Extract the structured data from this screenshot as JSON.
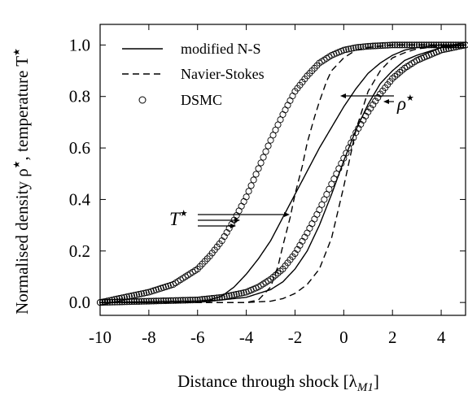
{
  "chart_data": {
    "type": "line",
    "xlabel": "Distance through shock [λ",
    "xlabel_sub": "M1",
    "xlabel_close": "]",
    "ylabel": "Normalised density ρ",
    "ylabel_mid": ", temperature T",
    "star": "★",
    "xlim": [
      -10,
      5
    ],
    "ylim": [
      -0.05,
      1.08
    ],
    "xticks": [
      -10,
      -8,
      -6,
      -4,
      -2,
      0,
      2,
      4
    ],
    "xtick_labels": [
      "-10",
      "-8",
      "-6",
      "-4",
      "-2",
      "0",
      "2",
      "4"
    ],
    "yticks": [
      0.0,
      0.2,
      0.4,
      0.6,
      0.8,
      1.0
    ],
    "ytick_labels": [
      "0.0",
      "0.2",
      "0.4",
      "0.6",
      "0.8",
      "1.0"
    ],
    "legend_position": "top-left",
    "legend": [
      {
        "label": "modified N-S",
        "style": "solid"
      },
      {
        "label": "Navier-Stokes",
        "style": "dashed"
      },
      {
        "label": "DSMC",
        "style": "circle"
      }
    ],
    "annotations": {
      "temperature": {
        "symbol": "T",
        "star": "★"
      },
      "density": {
        "symbol": "ρ",
        "star": "★"
      }
    },
    "series": [
      {
        "variable": "T",
        "style": "solid",
        "x": [
          -10,
          -8,
          -6,
          -5.5,
          -5,
          -4.5,
          -4,
          -3.5,
          -3,
          -2.5,
          -2,
          -1.5,
          -1,
          -0.5,
          0,
          0.5,
          1,
          1.5,
          2,
          2.5,
          3,
          4,
          5
        ],
        "y": [
          0.0,
          0.0,
          0.005,
          0.01,
          0.025,
          0.06,
          0.11,
          0.17,
          0.24,
          0.33,
          0.42,
          0.51,
          0.6,
          0.68,
          0.76,
          0.83,
          0.89,
          0.93,
          0.96,
          0.98,
          0.99,
          1.0,
          1.0
        ]
      },
      {
        "variable": "T",
        "style": "dashed",
        "x": [
          -10,
          -6,
          -4,
          -3.5,
          -3,
          -2.7,
          -2.5,
          -2.2,
          -2,
          -1.7,
          -1.5,
          -1.2,
          -1,
          -0.7,
          -0.5,
          0,
          0.5,
          1,
          2,
          5
        ],
        "y": [
          0.0,
          0.0,
          0.0,
          0.01,
          0.06,
          0.14,
          0.22,
          0.33,
          0.42,
          0.53,
          0.62,
          0.72,
          0.78,
          0.86,
          0.9,
          0.95,
          0.98,
          0.99,
          1.0,
          1.0
        ]
      },
      {
        "variable": "ρ",
        "style": "solid",
        "x": [
          -10,
          -6,
          -5,
          -4,
          -3,
          -2.5,
          -2,
          -1.5,
          -1,
          -0.5,
          0,
          0.5,
          1,
          1.5,
          2,
          2.5,
          3,
          4,
          5
        ],
        "y": [
          0.0,
          0.005,
          0.01,
          0.02,
          0.05,
          0.08,
          0.13,
          0.2,
          0.3,
          0.42,
          0.55,
          0.67,
          0.77,
          0.85,
          0.9,
          0.94,
          0.96,
          0.99,
          1.0
        ]
      },
      {
        "variable": "ρ",
        "style": "dashed",
        "x": [
          -10,
          -4,
          -3,
          -2.5,
          -2,
          -1.5,
          -1,
          -0.5,
          0,
          0.5,
          1,
          1.5,
          2,
          2.5,
          3,
          4,
          5
        ],
        "y": [
          0.0,
          0.0,
          0.005,
          0.015,
          0.035,
          0.07,
          0.13,
          0.25,
          0.45,
          0.67,
          0.82,
          0.9,
          0.95,
          0.97,
          0.985,
          0.995,
          1.0
        ]
      },
      {
        "variable": "T",
        "style": "circle",
        "x": [
          -10,
          -9,
          -8,
          -7,
          -6,
          -5.5,
          -5,
          -4.5,
          -4,
          -3.5,
          -3,
          -2.5,
          -2,
          -1.5,
          -1,
          -0.5,
          0,
          0.5,
          1,
          2,
          3,
          5
        ],
        "y": [
          0.0,
          0.02,
          0.04,
          0.07,
          0.13,
          0.18,
          0.24,
          0.32,
          0.41,
          0.52,
          0.63,
          0.73,
          0.82,
          0.88,
          0.93,
          0.96,
          0.98,
          0.99,
          0.995,
          1.0,
          1.0,
          1.0
        ]
      },
      {
        "variable": "ρ",
        "style": "circle",
        "x": [
          -10,
          -8,
          -6,
          -5,
          -4,
          -3.5,
          -3,
          -2.5,
          -2,
          -1.5,
          -1,
          -0.5,
          0,
          0.5,
          1,
          1.5,
          2,
          2.5,
          3,
          3.5,
          4,
          5
        ],
        "y": [
          0.0,
          0.005,
          0.01,
          0.02,
          0.04,
          0.06,
          0.09,
          0.13,
          0.19,
          0.27,
          0.36,
          0.46,
          0.56,
          0.66,
          0.74,
          0.81,
          0.87,
          0.91,
          0.94,
          0.96,
          0.98,
          1.0
        ]
      }
    ]
  }
}
